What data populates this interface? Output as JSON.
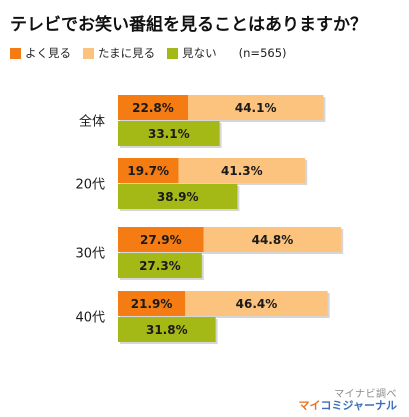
{
  "title": "テレビでお笑い番組を見ることはありますか？",
  "legend": {
    "items": [
      {
        "label": "よく見る",
        "color": "#f47c13"
      },
      {
        "label": "たまに見る",
        "color": "#fcc37f"
      },
      {
        "label": "見ない",
        "color": "#a5b916"
      }
    ],
    "n_note": "(n=565)"
  },
  "chart_data": {
    "type": "bar",
    "orientation": "horizontal",
    "stacked": true,
    "categories": [
      "全体",
      "20代",
      "30代",
      "40代"
    ],
    "series": [
      {
        "name": "よく見る",
        "values": [
          22.8,
          19.7,
          27.9,
          21.9
        ],
        "color": "#f47c13"
      },
      {
        "name": "たまに見る",
        "values": [
          44.1,
          41.3,
          44.8,
          46.4
        ],
        "color": "#fcc37f"
      },
      {
        "name": "見ない",
        "values": [
          33.1,
          38.9,
          27.3,
          31.8
        ],
        "color": "#a5b916"
      }
    ],
    "value_format": "percent_one_decimal",
    "grid": false,
    "legend_position": "top-left"
  },
  "watermark": {
    "line1": "マイナビ調べ",
    "line2_accent": "マイ",
    "line2_rest": "コミジャーナル"
  }
}
